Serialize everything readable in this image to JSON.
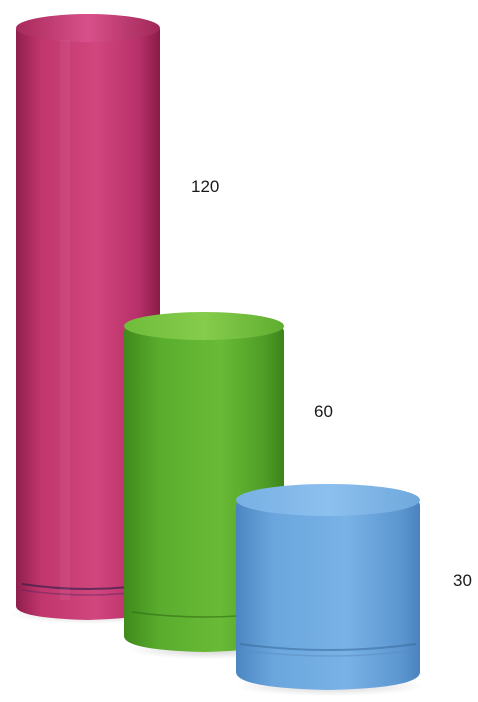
{
  "cylinders": [
    {
      "id": "tall",
      "height_value": "120",
      "color": "#c2366e"
    },
    {
      "id": "medium",
      "height_value": "60",
      "color": "#5aac2e"
    },
    {
      "id": "short",
      "height_value": "30",
      "color": "#6aa6dd"
    }
  ]
}
